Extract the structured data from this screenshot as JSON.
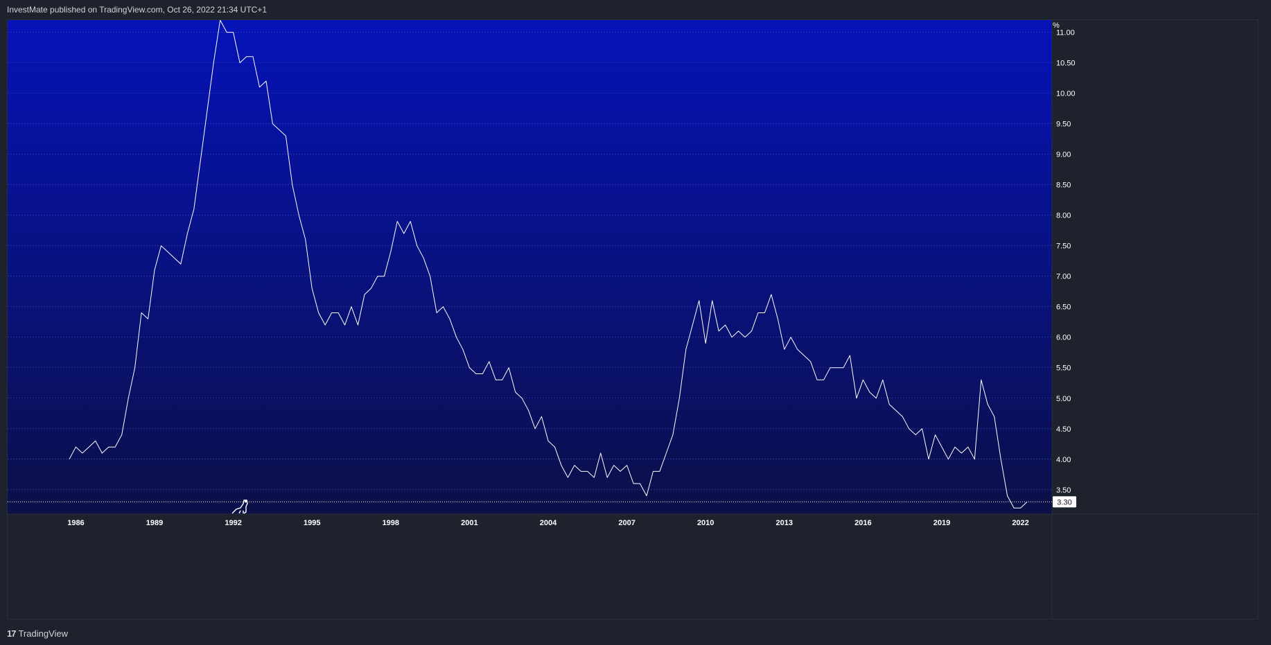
{
  "header": {
    "published_text": "InvestMate published on TradingView.com, Oct 26, 2022 21:34 UTC+1"
  },
  "footer": {
    "logo_glyph": "17",
    "brand": "TradingView"
  },
  "colors": {
    "background_top": "#0613b8",
    "background_bottom": "#0b1048",
    "line": "#ffffff",
    "axis_text": "#ffffff",
    "frame": "#1e222d",
    "price_label_bg": "#ffffff",
    "price_label_text": "#131722"
  },
  "icons": {
    "marker": "dinosaur-icon"
  },
  "chart_data": {
    "type": "line",
    "unit_label": "%",
    "last_value_label": "3.30",
    "last_value": 3.3,
    "grid": true,
    "ylim": [
      3.1,
      11.2
    ],
    "xlim": [
      1983.4,
      2023.2
    ],
    "y_ticks": [
      "3.50",
      "4.00",
      "4.50",
      "5.00",
      "5.50",
      "6.00",
      "6.50",
      "7.00",
      "7.50",
      "8.00",
      "8.50",
      "9.00",
      "9.50",
      "10.00",
      "10.50",
      "11.00"
    ],
    "x_ticks": [
      "1986",
      "1989",
      "1992",
      "1995",
      "1998",
      "2001",
      "2004",
      "2007",
      "2010",
      "2013",
      "2016",
      "2019",
      "2022"
    ],
    "x": [
      1985.75,
      1986,
      1986.25,
      1986.5,
      1986.75,
      1987,
      1987.25,
      1987.5,
      1987.75,
      1988,
      1988.25,
      1988.5,
      1988.75,
      1989,
      1989.25,
      1989.5,
      1989.75,
      1990,
      1990.25,
      1990.5,
      1990.75,
      1991,
      1991.25,
      1991.5,
      1991.75,
      1992,
      1992.25,
      1992.5,
      1992.75,
      1993,
      1993.25,
      1993.5,
      1993.75,
      1994,
      1994.25,
      1994.5,
      1994.75,
      1995,
      1995.25,
      1995.5,
      1995.75,
      1996,
      1996.25,
      1996.5,
      1996.75,
      1997,
      1997.25,
      1997.5,
      1997.75,
      1998,
      1998.25,
      1998.5,
      1998.75,
      1999,
      1999.25,
      1999.5,
      1999.75,
      2000,
      2000.25,
      2000.5,
      2000.75,
      2001,
      2001.25,
      2001.5,
      2001.75,
      2002,
      2002.25,
      2002.5,
      2002.75,
      2003,
      2003.25,
      2003.5,
      2003.75,
      2004,
      2004.25,
      2004.5,
      2004.75,
      2005,
      2005.25,
      2005.5,
      2005.75,
      2006,
      2006.25,
      2006.5,
      2006.75,
      2007,
      2007.25,
      2007.5,
      2007.75,
      2008,
      2008.25,
      2008.5,
      2008.75,
      2009,
      2009.25,
      2009.5,
      2009.75,
      2010,
      2010.25,
      2010.5,
      2010.75,
      2011,
      2011.25,
      2011.5,
      2011.75,
      2012,
      2012.25,
      2012.5,
      2012.75,
      2013,
      2013.25,
      2013.5,
      2013.75,
      2014,
      2014.25,
      2014.5,
      2014.75,
      2015,
      2015.25,
      2015.5,
      2015.75,
      2016,
      2016.25,
      2016.5,
      2016.75,
      2017,
      2017.25,
      2017.5,
      2017.75,
      2018,
      2018.25,
      2018.5,
      2018.75,
      2019,
      2019.25,
      2019.5,
      2019.75,
      2020,
      2020.25,
      2020.5,
      2020.75,
      2021,
      2021.25,
      2021.5,
      2021.75,
      2022,
      2022.25
    ],
    "y": [
      4.0,
      4.2,
      4.1,
      4.2,
      4.3,
      4.1,
      4.2,
      4.2,
      4.4,
      5.0,
      5.5,
      6.4,
      6.3,
      7.1,
      7.5,
      7.4,
      7.3,
      7.2,
      7.7,
      8.1,
      8.9,
      9.7,
      10.5,
      11.2,
      11.0,
      11.0,
      10.5,
      10.6,
      10.6,
      10.1,
      10.2,
      9.5,
      9.4,
      9.3,
      8.5,
      8.0,
      7.6,
      6.8,
      6.4,
      6.2,
      6.4,
      6.4,
      6.2,
      6.5,
      6.2,
      6.7,
      6.8,
      7.0,
      7.0,
      7.4,
      7.9,
      7.7,
      7.9,
      7.5,
      7.3,
      7.0,
      6.4,
      6.5,
      6.3,
      6.0,
      5.8,
      5.5,
      5.4,
      5.4,
      5.6,
      5.3,
      5.3,
      5.5,
      5.1,
      5.0,
      4.8,
      4.5,
      4.7,
      4.3,
      4.2,
      3.9,
      3.7,
      3.9,
      3.8,
      3.8,
      3.7,
      4.1,
      3.7,
      3.9,
      3.8,
      3.9,
      3.6,
      3.6,
      3.4,
      3.8,
      3.8,
      4.1,
      4.4,
      5.0,
      5.8,
      6.2,
      6.6,
      5.9,
      6.6,
      6.1,
      6.2,
      6.0,
      6.1,
      6.0,
      6.1,
      6.4,
      6.4,
      6.7,
      6.3,
      5.8,
      6.0,
      5.8,
      5.7,
      5.6,
      5.3,
      5.3,
      5.5,
      5.5,
      5.5,
      5.7,
      5.0,
      5.3,
      5.1,
      5.0,
      5.3,
      4.9,
      4.8,
      4.7,
      4.5,
      4.4,
      4.5,
      4.0,
      4.4,
      4.2,
      4.0,
      4.2,
      4.1,
      4.2,
      4.0,
      5.3,
      4.9,
      4.7,
      4.0,
      3.4,
      3.2,
      3.2,
      3.3
    ]
  }
}
